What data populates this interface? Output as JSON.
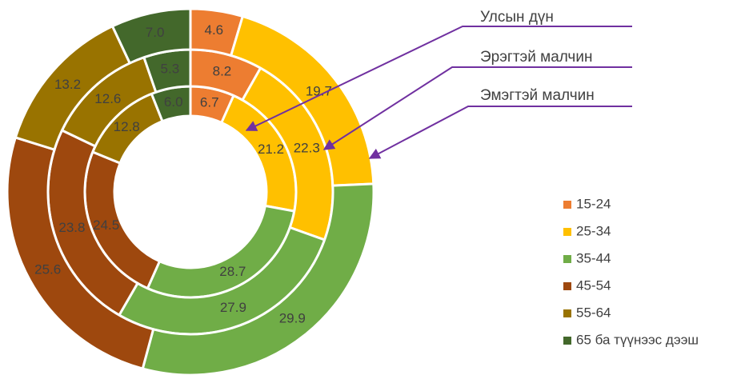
{
  "chart_data": {
    "type": "donut",
    "categories": [
      "15-24",
      "25-34",
      "35-44",
      "45-54",
      "55-64",
      "65 ба түүнээс дээш"
    ],
    "colors": [
      "#ED7D31",
      "#FFC000",
      "#70AD47",
      "#9E480E",
      "#997300",
      "#43682B"
    ],
    "legend": "right",
    "series": [
      {
        "name": "Улсын дүн",
        "values": [
          6.7,
          21.2,
          28.7,
          24.5,
          12.8,
          6.0
        ],
        "value_labels": [
          "6.7",
          "21.2",
          "28.7",
          "24.5",
          "12.8",
          "6.0"
        ]
      },
      {
        "name": "Эрэгтэй малчин",
        "values": [
          8.2,
          22.3,
          27.9,
          23.8,
          12.6,
          5.3
        ],
        "value_labels": [
          "8.2",
          "22.3",
          "27.9",
          "23.8",
          "12.6",
          "5.3"
        ]
      },
      {
        "name": "Эмэгтэй малчин",
        "values": [
          4.6,
          19.7,
          29.9,
          25.6,
          13.2,
          7.0
        ],
        "value_labels": [
          "4.6",
          "19.7",
          "29.9",
          "25.6",
          "13.2",
          "7.0"
        ]
      }
    ]
  }
}
